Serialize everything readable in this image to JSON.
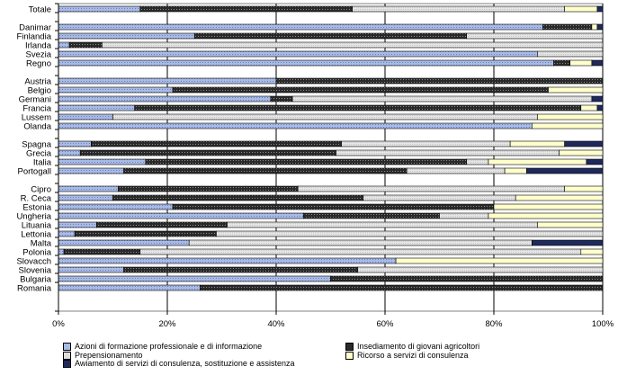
{
  "chart_data": {
    "type": "bar",
    "orientation": "horizontal",
    "stacked": "percent",
    "title": "",
    "xlabel": "",
    "ylabel": "",
    "xlim": [
      0,
      100
    ],
    "x_ticks": [
      "0%",
      "20%",
      "40%",
      "60%",
      "80%",
      "100%"
    ],
    "grid": true,
    "legend_position": "bottom",
    "categories": [
      "Totale",
      "",
      "Danimar",
      "Finlandia",
      "Irlanda",
      "Svezia",
      "Regno",
      "",
      "Austria",
      "Belgio",
      "Germani",
      "Francia",
      "Lussem",
      "Olanda",
      "",
      "Spagna",
      "Grecia",
      "Italia",
      "Portogall",
      "",
      "Cipro",
      "R. Ceca",
      "Estonia",
      "Ungheria",
      "Lituania",
      "Lettonia",
      "Malta",
      "Polonia",
      "Slovacch",
      "Slovenia",
      "Bulgaria",
      "Romania"
    ],
    "series": [
      {
        "name": "Azioni di formazione professionale e di informazione",
        "values": [
          15,
          null,
          89,
          25,
          2,
          88,
          91,
          null,
          40,
          21,
          39,
          14,
          10,
          87,
          null,
          6,
          4,
          16,
          12,
          null,
          11,
          10,
          21,
          45,
          7,
          3,
          24,
          1,
          62,
          12,
          50,
          26
        ],
        "color": "#9fb3e0",
        "pattern": "dots-light"
      },
      {
        "name": "Insediamento di giovani agricoltori",
        "values": [
          39,
          null,
          9,
          50,
          6,
          0,
          3,
          null,
          60,
          69,
          4,
          82,
          0,
          0,
          null,
          46,
          47,
          59,
          52,
          null,
          33,
          46,
          59,
          25,
          24,
          26,
          0,
          14,
          0,
          43,
          50,
          74
        ],
        "color": "#2b2b2b",
        "pattern": "dots-dark"
      },
      {
        "name": "Prepensionamento",
        "values": [
          39,
          null,
          0,
          25,
          92,
          12,
          0,
          null,
          0,
          0,
          55,
          0,
          78,
          0,
          null,
          31,
          41,
          4,
          18,
          null,
          49,
          28,
          0,
          9,
          57,
          71,
          63,
          81,
          0,
          45,
          0,
          0
        ],
        "color": "#dddddd",
        "pattern": "light-grey"
      },
      {
        "name": "Ricorso a  servizi di consulenza",
        "values": [
          6,
          null,
          1,
          0,
          0,
          0,
          4,
          null,
          0,
          10,
          0,
          3,
          12,
          13,
          null,
          10,
          8,
          18,
          4,
          null,
          7,
          16,
          20,
          21,
          12,
          0,
          0,
          4,
          38,
          0,
          0,
          0
        ],
        "color": "#ffffcc",
        "pattern": "solid"
      },
      {
        "name": "Awiamento di servizi di consulenza, sostituzione e assistenza",
        "values": [
          1,
          null,
          1,
          0,
          0,
          0,
          2,
          null,
          0,
          0,
          2,
          1,
          0,
          0,
          null,
          7,
          0,
          3,
          14,
          null,
          0,
          0,
          0,
          0,
          0,
          0,
          13,
          0,
          0,
          0,
          0,
          0
        ],
        "color": "#1f2a5c",
        "pattern": "solid"
      }
    ]
  }
}
